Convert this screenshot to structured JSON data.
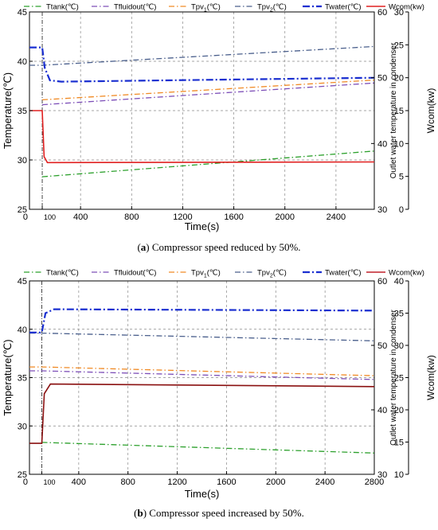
{
  "chart_data": [
    {
      "type": "line",
      "caption_letter": "a",
      "caption_text": "Compressor speed reduced by 50%.",
      "xlabel": "Time(s)",
      "ylabel_left": "Temperature(℃)",
      "ylabel_mid": "Outlet water temperature in condenser",
      "ylabel_right": "Wcom(kw)",
      "xlim": [
        0,
        2700
      ],
      "x_ticks": [
        0,
        100,
        400,
        800,
        1200,
        1600,
        2000,
        2400
      ],
      "y_left_lim": [
        25,
        45
      ],
      "y_left_ticks": [
        25,
        30,
        35,
        40,
        45
      ],
      "y_mid_lim": [
        30,
        60
      ],
      "y_mid_ticks": [
        30,
        40,
        50,
        60
      ],
      "y_right_lim": [
        0,
        30
      ],
      "y_right_ticks": [
        0,
        5,
        10,
        15,
        20,
        25,
        30
      ],
      "grid": true,
      "vline_x": 100,
      "legend": [
        {
          "text": "Ttank(℃)",
          "sub": "",
          "color": "#2ca02c",
          "dash": "dashdot"
        },
        {
          "text": "Tfluidout(℃)",
          "sub": "",
          "color": "#7d4fb8",
          "dash": "dashdot"
        },
        {
          "text": "Tpv",
          "sub": "1",
          "tail": "(℃)",
          "color": "#f08a24",
          "dash": "dashdot"
        },
        {
          "text": "Tpv",
          "sub": "2",
          "tail": "(℃)",
          "color": "#4a5f8c",
          "dash": "dashdot"
        },
        {
          "text": "Twater(℃)",
          "sub": "",
          "color": "#1a2fd0",
          "dash": "dashdot_bold"
        },
        {
          "text": "Wcom(kw)",
          "sub": "",
          "color": "#e02020",
          "dash": "solid"
        }
      ],
      "series": [
        {
          "name": "Ttank(℃)",
          "axis": "left",
          "color": "#2ca02c",
          "dash": "dashdot",
          "x": [
            100,
            2700
          ],
          "y": [
            28.3,
            30.9
          ]
        },
        {
          "name": "Tfluidout(℃)",
          "axis": "left",
          "color": "#7d4fb8",
          "dash": "dashdot",
          "x": [
            100,
            2700
          ],
          "y": [
            35.6,
            37.8
          ]
        },
        {
          "name": "Tpv1(℃)",
          "axis": "left",
          "color": "#f08a24",
          "dash": "dashdot",
          "x": [
            100,
            2700
          ],
          "y": [
            36.1,
            38.1
          ]
        },
        {
          "name": "Tpv2(℃)",
          "axis": "left",
          "color": "#4a5f8c",
          "dash": "dashdot",
          "x": [
            0,
            100,
            2700
          ],
          "y": [
            39.6,
            39.6,
            41.5
          ]
        },
        {
          "name": "Twater(℃)",
          "axis": "mid",
          "color": "#1a2fd0",
          "dash": "dashdot_bold",
          "x": [
            0,
            100,
            120,
            160,
            250,
            2700
          ],
          "y": [
            54.6,
            54.6,
            51.5,
            49.6,
            49.4,
            50.0
          ]
        },
        {
          "name": "Wcom(kw)",
          "axis": "right",
          "color": "#e02020",
          "dash": "solid",
          "x": [
            0,
            100,
            115,
            140,
            2700
          ],
          "y": [
            15.0,
            15.0,
            8.0,
            7.1,
            7.2
          ]
        }
      ]
    },
    {
      "type": "line",
      "caption_letter": "b",
      "caption_text": "Compressor speed increased by 50%.",
      "xlabel": "Time(s)",
      "ylabel_left": "Temperature(℃)",
      "ylabel_mid": "Outlet water temperature in condenser",
      "ylabel_right": "Wcom(kw)",
      "xlim": [
        0,
        2800
      ],
      "x_ticks": [
        0,
        100,
        400,
        800,
        1200,
        1600,
        2000,
        2400,
        2800
      ],
      "y_left_lim": [
        25,
        45
      ],
      "y_left_ticks": [
        25,
        30,
        35,
        40,
        45
      ],
      "y_mid_lim": [
        30,
        60
      ],
      "y_mid_ticks": [
        30,
        40,
        50,
        60
      ],
      "y_right_lim": [
        10,
        40
      ],
      "y_right_ticks": [
        10,
        15,
        20,
        25,
        30,
        35,
        40
      ],
      "grid": true,
      "vline_x": 100,
      "legend": [
        {
          "text": "Ttank(℃)",
          "sub": "",
          "color": "#2ca02c",
          "dash": "dashdot"
        },
        {
          "text": "Tfluidout(℃)",
          "sub": "",
          "color": "#7d4fb8",
          "dash": "dashdot"
        },
        {
          "text": "Tpv",
          "sub": "1",
          "tail": "(℃)",
          "color": "#f08a24",
          "dash": "dashdot"
        },
        {
          "text": "Tpv",
          "sub": "2",
          "tail": "(℃)",
          "color": "#4a5f8c",
          "dash": "dashdot"
        },
        {
          "text": "Twater(℃)",
          "sub": "",
          "color": "#1a2fd0",
          "dash": "dashdot_bold"
        },
        {
          "text": "Wcom(kw)",
          "sub": "",
          "color": "#c0202a",
          "dash": "solid"
        }
      ],
      "series": [
        {
          "name": "Ttank(℃)",
          "axis": "left",
          "color": "#2ca02c",
          "dash": "dashdot",
          "x": [
            100,
            2800
          ],
          "y": [
            28.3,
            27.2
          ]
        },
        {
          "name": "Tfluidout(℃)",
          "axis": "left",
          "color": "#7d4fb8",
          "dash": "dashdot",
          "x": [
            0,
            100,
            2800
          ],
          "y": [
            35.7,
            35.7,
            34.8
          ]
        },
        {
          "name": "Tpv1(℃)",
          "axis": "left",
          "color": "#f08a24",
          "dash": "dashdot",
          "x": [
            0,
            100,
            2800
          ],
          "y": [
            36.1,
            36.1,
            35.2
          ]
        },
        {
          "name": "Tpv2(℃)",
          "axis": "left",
          "color": "#4a5f8c",
          "dash": "dashdot",
          "x": [
            0,
            100,
            2800
          ],
          "y": [
            39.6,
            39.6,
            38.8
          ]
        },
        {
          "name": "Twater(℃)",
          "axis": "mid",
          "color": "#1a2fd0",
          "dash": "dashdot_bold",
          "x": [
            0,
            100,
            130,
            200,
            2800
          ],
          "y": [
            52.0,
            52.0,
            55.0,
            55.6,
            55.4
          ]
        },
        {
          "name": "Wcom(kw)",
          "axis": "right",
          "color": "#8a1010",
          "dash": "solid",
          "x": [
            0,
            100,
            120,
            170,
            2800
          ],
          "y": [
            14.8,
            14.8,
            22.5,
            24.0,
            23.6
          ]
        }
      ]
    }
  ]
}
